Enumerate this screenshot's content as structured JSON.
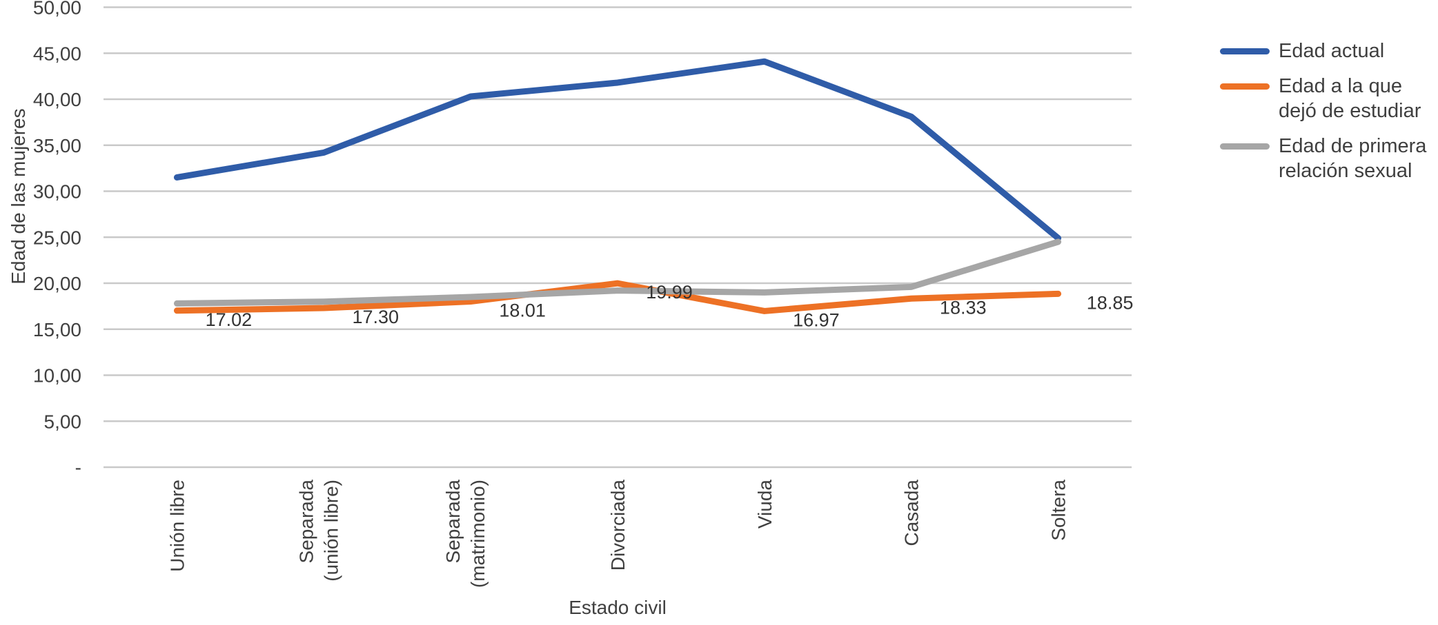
{
  "chart_data": {
    "type": "line",
    "title": "",
    "xlabel": "Estado civil",
    "ylabel": "Edad de las mujeres",
    "ylim": [
      0,
      50
    ],
    "grid": true,
    "legend_position": "right",
    "y_ticks": [
      {
        "v": 50,
        "label": "50,00"
      },
      {
        "v": 45,
        "label": "45,00"
      },
      {
        "v": 40,
        "label": "40,00"
      },
      {
        "v": 35,
        "label": "35,00"
      },
      {
        "v": 30,
        "label": "30,00"
      },
      {
        "v": 25,
        "label": "25,00"
      },
      {
        "v": 20,
        "label": "20,00"
      },
      {
        "v": 15,
        "label": "15,00"
      },
      {
        "v": 10,
        "label": "10,00"
      },
      {
        "v": 5,
        "label": "5,00"
      },
      {
        "v": 0,
        "label": "-"
      }
    ],
    "categories": [
      "Unión libre",
      "Separada (unión libre)",
      "Separada (matrimonio)",
      "Divorciada",
      "Viuda",
      "Casada",
      "Soltera"
    ],
    "series": [
      {
        "name": "Edad actual",
        "color": "#2f5ca8",
        "values": [
          31.5,
          34.2,
          40.3,
          41.8,
          44.1,
          38.1,
          24.9
        ]
      },
      {
        "name": "Edad a la que dejó de estudiar",
        "color": "#ed7125",
        "values": [
          17.02,
          17.3,
          18.01,
          19.99,
          16.97,
          18.33,
          18.85
        ],
        "data_labels": [
          "17.02",
          "17.30",
          "18.01",
          "19.99",
          "16.97",
          "18.33",
          "18.85"
        ]
      },
      {
        "name": "Edad de primera relación sexual",
        "color": "#a6a6a6",
        "values": [
          17.8,
          18.0,
          18.5,
          19.2,
          19.0,
          19.6,
          24.5
        ]
      }
    ]
  },
  "colors": {
    "text": "#404040",
    "data_label_text": "#333333",
    "grid": "#c9c9c9",
    "background": "#ffffff"
  }
}
